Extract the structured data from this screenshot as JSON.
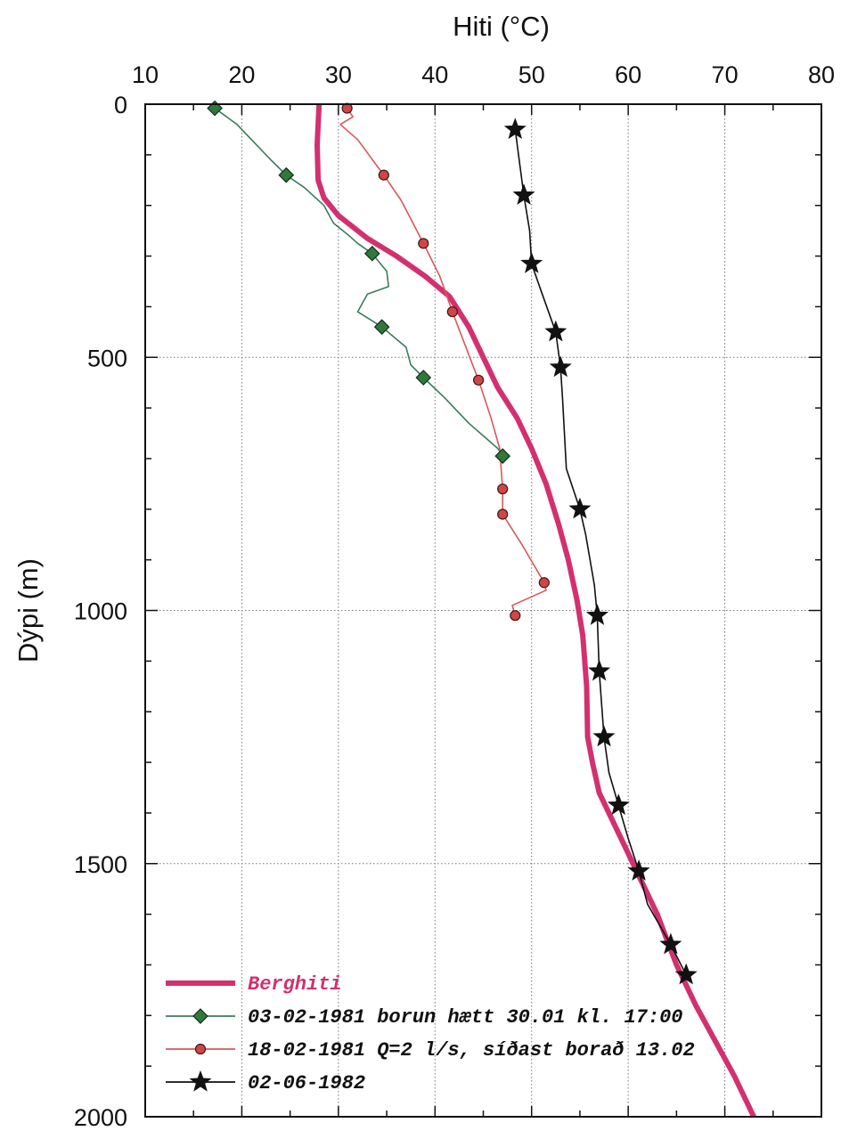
{
  "chart_data": {
    "type": "line",
    "title": "",
    "xlabel": "Hiti (°C)",
    "ylabel": "Dýpi (m)",
    "xlim": [
      10,
      80
    ],
    "ylim": [
      0,
      2000
    ],
    "y_inverted": true,
    "x_axis_position": "top",
    "x_ticks": [
      10,
      20,
      30,
      40,
      50,
      60,
      70,
      80
    ],
    "y_ticks": [
      0,
      500,
      1000,
      1500,
      2000
    ],
    "grid": true,
    "legend_position": "bottom-left",
    "series": [
      {
        "name": "Berghiti",
        "color": "#d3306f",
        "marker": "none",
        "points": [
          [
            28.0,
            0
          ],
          [
            27.8,
            80
          ],
          [
            27.9,
            150
          ],
          [
            28.5,
            185
          ],
          [
            30,
            220
          ],
          [
            33,
            265
          ],
          [
            36,
            300
          ],
          [
            39,
            340
          ],
          [
            41.5,
            380
          ],
          [
            43.5,
            440
          ],
          [
            45,
            500
          ],
          [
            46.5,
            560
          ],
          [
            48.5,
            620
          ],
          [
            50,
            680
          ],
          [
            51.5,
            750
          ],
          [
            52.8,
            830
          ],
          [
            53.8,
            900
          ],
          [
            54.7,
            980
          ],
          [
            55.3,
            1050
          ],
          [
            55.7,
            1150
          ],
          [
            55.8,
            1250
          ],
          [
            56.3,
            1300
          ],
          [
            57,
            1360
          ],
          [
            59,
            1440
          ],
          [
            61,
            1520
          ],
          [
            63,
            1600
          ],
          [
            65,
            1700
          ],
          [
            67,
            1780
          ],
          [
            69,
            1850
          ],
          [
            71,
            1920
          ],
          [
            73,
            2000
          ]
        ]
      },
      {
        "name": "03-02-1981 borun hætt 30.01 kl. 17:00",
        "color": "#3a7c5c",
        "marker": "diamond",
        "marker_fill": "#2f7a3a",
        "points": [
          [
            17.2,
            8
          ],
          [
            19.5,
            40
          ],
          [
            21,
            70
          ],
          [
            23,
            110
          ],
          [
            24.6,
            140
          ],
          [
            26.5,
            165
          ],
          [
            28.5,
            200
          ],
          [
            29.5,
            235
          ],
          [
            31,
            258
          ],
          [
            32,
            275
          ],
          [
            33.5,
            295
          ],
          [
            35,
            330
          ],
          [
            35.2,
            360
          ],
          [
            33,
            375
          ],
          [
            32,
            410
          ],
          [
            34.5,
            440
          ],
          [
            37,
            480
          ],
          [
            37.5,
            515
          ],
          [
            38.8,
            540
          ],
          [
            41,
            580
          ],
          [
            43.5,
            630
          ],
          [
            46.5,
            680
          ],
          [
            47,
            695
          ]
        ]
      },
      {
        "name": "18-02-1981 Q=2 l/s, síðast borað 13.02",
        "color": "#d85858",
        "marker": "circle",
        "marker_fill": "#d34545",
        "points": [
          [
            30.9,
            8
          ],
          [
            31.5,
            25
          ],
          [
            30.2,
            40
          ],
          [
            32,
            70
          ],
          [
            34.7,
            140
          ],
          [
            36.5,
            190
          ],
          [
            38.8,
            275
          ],
          [
            40.5,
            340
          ],
          [
            41.8,
            410
          ],
          [
            43,
            470
          ],
          [
            44.5,
            545
          ],
          [
            45.8,
            620
          ],
          [
            46.7,
            680
          ],
          [
            47,
            760
          ],
          [
            47,
            810
          ],
          [
            49,
            870
          ],
          [
            51.3,
            945
          ],
          [
            51.5,
            960
          ],
          [
            48,
            990
          ],
          [
            48.3,
            1010
          ]
        ]
      },
      {
        "name": "02-06-1982",
        "color": "#111111",
        "marker": "star",
        "marker_fill": "#111111",
        "points": [
          [
            48.3,
            50
          ],
          [
            49.2,
            180
          ],
          [
            49.8,
            250
          ],
          [
            50,
            315
          ],
          [
            51,
            370
          ],
          [
            52.5,
            450
          ],
          [
            53,
            520
          ],
          [
            53.2,
            580
          ],
          [
            53.6,
            720
          ],
          [
            55,
            800
          ],
          [
            55.6,
            850
          ],
          [
            56.5,
            950
          ],
          [
            56.8,
            1010
          ],
          [
            57,
            1120
          ],
          [
            57.5,
            1250
          ],
          [
            58,
            1320
          ],
          [
            59,
            1385
          ],
          [
            60,
            1450
          ],
          [
            61.1,
            1515
          ],
          [
            62,
            1580
          ],
          [
            64.4,
            1660
          ],
          [
            66,
            1720
          ]
        ]
      }
    ],
    "legend": [
      {
        "label": "Berghiti",
        "color": "#d3306f",
        "marker": "none"
      },
      {
        "label": "03-02-1981 borun hætt 30.01 kl. 17:00",
        "color": "#3a7c5c",
        "marker": "diamond"
      },
      {
        "label": "18-02-1981 Q=2 l/s, síðast borað 13.02",
        "color": "#d85858",
        "marker": "circle"
      },
      {
        "label": "02-06-1982",
        "color": "#111111",
        "marker": "star"
      }
    ]
  }
}
